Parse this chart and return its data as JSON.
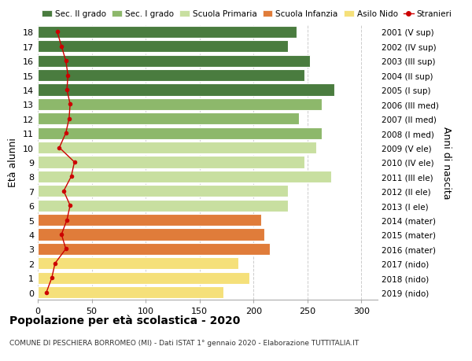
{
  "ages": [
    0,
    1,
    2,
    3,
    4,
    5,
    6,
    7,
    8,
    9,
    10,
    11,
    12,
    13,
    14,
    15,
    16,
    17,
    18
  ],
  "years": [
    "2019 (nido)",
    "2018 (nido)",
    "2017 (nido)",
    "2016 (mater)",
    "2015 (mater)",
    "2014 (mater)",
    "2013 (I ele)",
    "2012 (II ele)",
    "2011 (III ele)",
    "2010 (IV ele)",
    "2009 (V ele)",
    "2008 (I med)",
    "2007 (II med)",
    "2006 (III med)",
    "2005 (I sup)",
    "2004 (II sup)",
    "2003 (III sup)",
    "2002 (IV sup)",
    "2001 (V sup)"
  ],
  "bar_values": [
    172,
    196,
    186,
    215,
    210,
    207,
    232,
    232,
    272,
    247,
    258,
    263,
    242,
    263,
    275,
    247,
    252,
    232,
    240
  ],
  "stranieri_values": [
    8,
    13,
    16,
    26,
    22,
    27,
    30,
    24,
    31,
    34,
    20,
    26,
    29,
    30,
    27,
    28,
    26,
    22,
    18
  ],
  "bar_colors": [
    "#f5e07a",
    "#f5e07a",
    "#f5e07a",
    "#e07c3a",
    "#e07c3a",
    "#e07c3a",
    "#c8dfa0",
    "#c8dfa0",
    "#c8dfa0",
    "#c8dfa0",
    "#c8dfa0",
    "#8db86b",
    "#8db86b",
    "#8db86b",
    "#4a7c3f",
    "#4a7c3f",
    "#4a7c3f",
    "#4a7c3f",
    "#4a7c3f"
  ],
  "legend_labels": [
    "Sec. II grado",
    "Sec. I grado",
    "Scuola Primaria",
    "Scuola Infanzia",
    "Asilo Nido",
    "Stranieri"
  ],
  "legend_colors": [
    "#4a7c3f",
    "#8db86b",
    "#c8dfa0",
    "#e07c3a",
    "#f5e07a",
    "#cc0000"
  ],
  "ylabel": "Età alunni",
  "ylabel_right": "Anni di nascita",
  "title": "Popolazione per età scolastica - 2020",
  "subtitle": "COMUNE DI PESCHIERA BORROMEO (MI) - Dati ISTAT 1° gennaio 2020 - Elaborazione TUTTITALIA.IT",
  "xlim": [
    0,
    315
  ],
  "xticks": [
    0,
    50,
    100,
    150,
    200,
    250,
    300
  ],
  "bg_color": "#ffffff",
  "grid_color": "#cccccc",
  "stranieri_color": "#cc0000",
  "bar_height": 0.82
}
